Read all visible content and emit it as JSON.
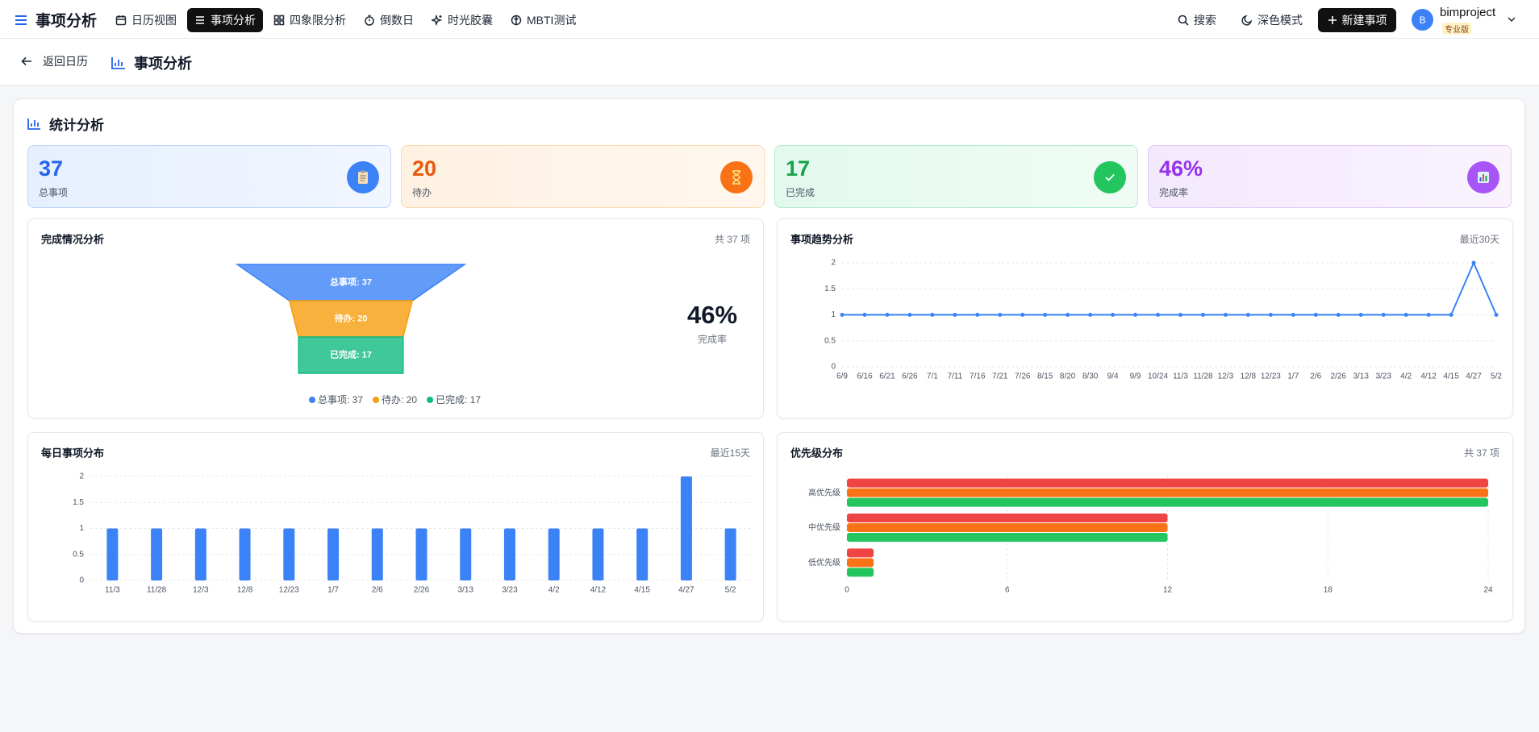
{
  "nav": {
    "brand": "事项分析",
    "items": [
      "日历视图",
      "事项分析",
      "四象限分析",
      "倒数日",
      "时光胶囊",
      "MBTI测试"
    ],
    "active": 1,
    "search": "搜索",
    "dark_mode": "深色模式",
    "new_item": "新建事项",
    "avatar": "B",
    "username": "bimproject",
    "plan": "专业版"
  },
  "breadcrumb": {
    "back": "返回日历",
    "title": "事项分析"
  },
  "section_title": "统计分析",
  "stats": [
    {
      "value": "37",
      "label": "总事项"
    },
    {
      "value": "20",
      "label": "待办"
    },
    {
      "value": "17",
      "label": "已完成"
    },
    {
      "value": "46%",
      "label": "完成率"
    }
  ],
  "chart_data": [
    {
      "type": "funnel",
      "title": "完成情况分析",
      "subtitle": "共 37 项",
      "categories": [
        "总事项",
        "待办",
        "已完成"
      ],
      "values": [
        37,
        20,
        17
      ],
      "value_labels": [
        "总事项: 37",
        "待办: 20",
        "已完成: 17"
      ],
      "colors": [
        "#3b82f6",
        "#f59e0b",
        "#10b981"
      ],
      "annotation": {
        "value": "46%",
        "label": "完成率"
      }
    },
    {
      "type": "line",
      "title": "事项趋势分析",
      "subtitle": "最近30天",
      "categories": [
        "6/9",
        "6/16",
        "6/21",
        "6/26",
        "7/1",
        "7/11",
        "7/16",
        "7/21",
        "7/26",
        "8/15",
        "8/20",
        "8/30",
        "9/4",
        "9/9",
        "10/24",
        "11/3",
        "11/28",
        "12/3",
        "12/8",
        "12/23",
        "1/7",
        "2/6",
        "2/26",
        "3/13",
        "3/23",
        "4/2",
        "4/12",
        "4/15",
        "4/27",
        "5/2"
      ],
      "values": [
        1,
        1,
        1,
        1,
        1,
        1,
        1,
        1,
        1,
        1,
        1,
        1,
        1,
        1,
        1,
        1,
        1,
        1,
        1,
        1,
        1,
        1,
        1,
        1,
        1,
        1,
        1,
        1,
        2,
        1
      ],
      "color": "#3b82f6",
      "ylim": [
        0,
        2
      ],
      "yticks": [
        0,
        0.5,
        1,
        1.5,
        2
      ],
      "grid": true
    },
    {
      "type": "bar",
      "title": "每日事项分布",
      "subtitle": "最近15天",
      "categories": [
        "11/3",
        "11/28",
        "12/3",
        "12/8",
        "12/23",
        "1/7",
        "2/6",
        "2/26",
        "3/13",
        "3/23",
        "4/2",
        "4/12",
        "4/15",
        "4/27",
        "5/2"
      ],
      "values": [
        1,
        1,
        1,
        1,
        1,
        1,
        1,
        1,
        1,
        1,
        1,
        1,
        1,
        2,
        1
      ],
      "color": "#3b82f6",
      "ylim": [
        0,
        2
      ],
      "yticks": [
        0,
        0.5,
        1,
        1.5,
        2
      ],
      "grid": true
    },
    {
      "type": "bar",
      "orientation": "horizontal",
      "title": "优先级分布",
      "subtitle": "共 37 项",
      "categories": [
        "高优先级",
        "中优先级",
        "低优先级"
      ],
      "series": [
        {
          "color": "#ef4444",
          "values": [
            24,
            12,
            1
          ]
        },
        {
          "color": "#f97316",
          "values": [
            24,
            12,
            1
          ]
        },
        {
          "color": "#22c55e",
          "values": [
            24,
            12,
            1
          ]
        }
      ],
      "xlim": [
        0,
        24
      ],
      "xticks": [
        0,
        6,
        12,
        18,
        24
      ],
      "grid": true
    }
  ]
}
